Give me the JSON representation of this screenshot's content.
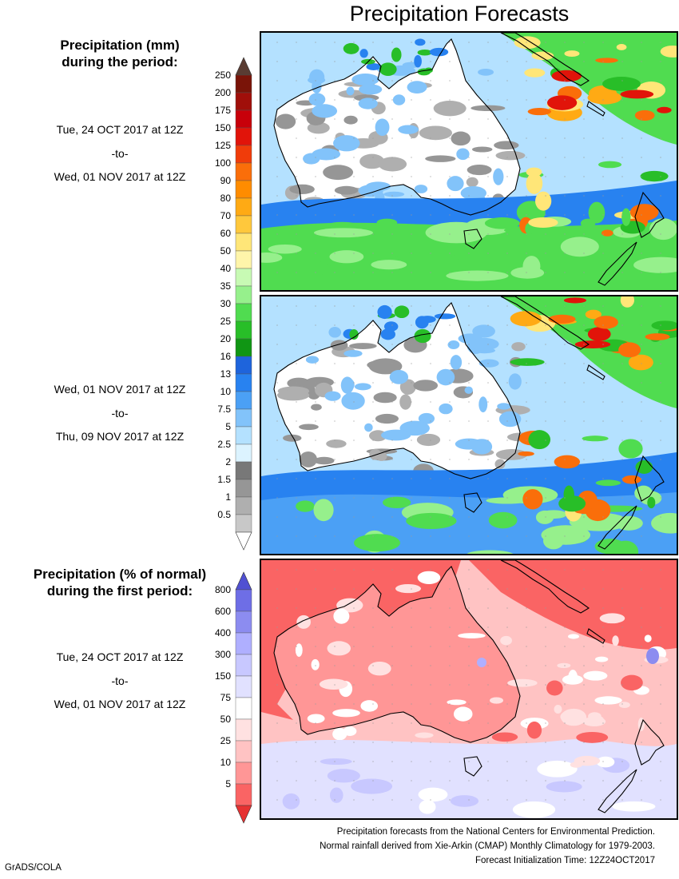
{
  "title": "Precipitation Forecasts",
  "sections": [
    {
      "title_line1": "Precipitation (mm)",
      "title_line2": "during the period:",
      "periods": [
        {
          "start": "Tue, 24 OCT 2017 at 12Z",
          "sep": "-to-",
          "end": "Wed, 01 NOV 2017 at 12Z"
        },
        {
          "start": "Wed, 01 NOV 2017 at 12Z",
          "sep": "-to-",
          "end": "Thu, 09 NOV 2017 at 12Z"
        }
      ],
      "legend": {
        "labels": [
          "250",
          "200",
          "175",
          "150",
          "125",
          "100",
          "90",
          "80",
          "70",
          "60",
          "50",
          "40",
          "35",
          "30",
          "25",
          "20",
          "16",
          "13",
          "10",
          "7.5",
          "5",
          "2.5",
          "2",
          "1.5",
          "1",
          "0.5"
        ],
        "colors": [
          "#7a1408",
          "#a00f0a",
          "#c8000a",
          "#e1140a",
          "#f03c0a",
          "#fa6e0a",
          "#ff8c00",
          "#ffaa14",
          "#ffc83c",
          "#ffe678",
          "#fff5aa",
          "#c8fab4",
          "#96f08c",
          "#50dc50",
          "#28be28",
          "#109614",
          "#1e64dc",
          "#2882f0",
          "#4ba0f5",
          "#82c3fa",
          "#b4e1ff",
          "#dcf3ff",
          "#787878",
          "#969696",
          "#afafaf",
          "#c8c8c8"
        ],
        "top_arrow_color": "#5a3c32",
        "bottom_arrow_color": "#ffffff"
      }
    },
    {
      "title_line1": "Precipitation (% of normal)",
      "title_line2": "during the first period:",
      "periods": [
        {
          "start": "Tue, 24 OCT 2017 at 12Z",
          "sep": "-to-",
          "end": "Wed, 01 NOV 2017 at 12Z"
        }
      ],
      "legend": {
        "labels": [
          "800",
          "600",
          "400",
          "300",
          "150",
          "75",
          "50",
          "25",
          "10",
          "5"
        ],
        "colors": [
          "#6e6ee6",
          "#8c8cf0",
          "#afafff",
          "#c8c8ff",
          "#e1e1ff",
          "#ffffff",
          "#ffe1e1",
          "#ffc3c3",
          "#ff9696",
          "#fa6464"
        ],
        "top_arrow_color": "#5050d2",
        "bottom_arrow_color": "#e63232"
      }
    }
  ],
  "footnotes": [
    "Precipitation forecasts from the National Centers for Environmental Prediction.",
    "Normal rainfall derived from Xie-Arkin (CMAP) Monthly Climatology for 1979-2003.",
    "Forecast Initialization Time: 12Z24OCT2017"
  ],
  "credit": "GrADS/COLA"
}
